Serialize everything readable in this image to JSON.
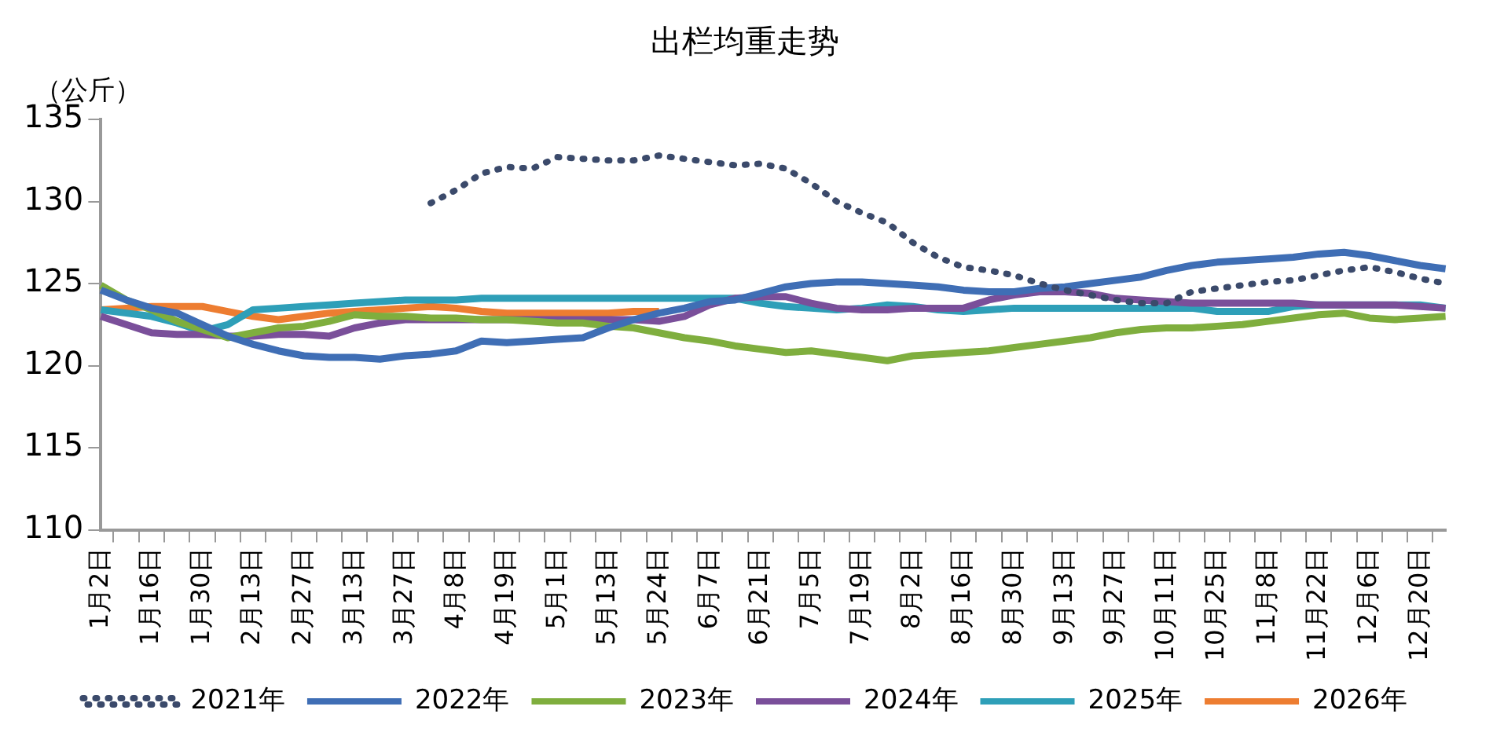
{
  "chart_data": {
    "type": "line",
    "title": "出栏均重走势",
    "ylabel": "（公斤）",
    "categories": [
      "1月2日",
      null,
      "1月16日",
      null,
      "1月30日",
      null,
      "2月13日",
      null,
      "2月27日",
      null,
      "3月13日",
      null,
      "3月27日",
      null,
      "4月8日",
      null,
      "4月19日",
      null,
      "5月1日",
      null,
      "5月13日",
      null,
      "5月24日",
      null,
      "6月7日",
      null,
      "6月21日",
      null,
      "7月5日",
      null,
      "7月19日",
      null,
      "8月2日",
      null,
      "8月16日",
      null,
      "8月30日",
      null,
      "9月13日",
      null,
      "9月27日",
      null,
      "10月11日",
      null,
      "10月25日",
      null,
      "11月8日",
      null,
      "11月22日",
      null,
      "12月6日",
      null,
      "12月20日",
      null
    ],
    "ylim": [
      110,
      135
    ],
    "yticks": [
      110,
      115,
      120,
      125,
      130,
      135
    ],
    "grid": false,
    "legend": "bottom",
    "marker": "none",
    "series": [
      {
        "name": "2021年",
        "color": "#3b4a6b",
        "line_style": "dotted",
        "values": [
          null,
          null,
          null,
          null,
          null,
          null,
          null,
          null,
          null,
          null,
          null,
          null,
          null,
          129.9,
          130.7,
          131.7,
          132.1,
          132.0,
          132.7,
          132.6,
          132.5,
          132.5,
          132.8,
          132.6,
          132.4,
          132.2,
          132.3,
          132.0,
          131.1,
          130.0,
          129.3,
          128.7,
          127.5,
          126.6,
          126.0,
          125.8,
          125.5,
          125.0,
          124.6,
          124.3,
          124.0,
          123.8,
          123.8,
          124.5,
          124.7,
          124.9,
          125.1,
          125.2,
          125.5,
          125.8,
          126.0,
          125.7,
          125.3,
          125.0
        ]
      },
      {
        "name": "2022年",
        "color": "#3f6eb5",
        "line_style": "solid",
        "values": [
          124.6,
          124.0,
          123.5,
          123.2,
          122.5,
          121.8,
          121.3,
          120.9,
          120.6,
          120.5,
          120.5,
          120.4,
          120.6,
          120.7,
          120.9,
          121.5,
          121.4,
          121.5,
          121.6,
          121.7,
          122.3,
          122.8,
          123.2,
          123.5,
          123.9,
          124.0,
          124.4,
          124.8,
          125.0,
          125.1,
          125.1,
          125.0,
          124.9,
          124.8,
          124.6,
          124.5,
          124.5,
          124.7,
          124.8,
          125.0,
          125.2,
          125.4,
          125.8,
          126.1,
          126.3,
          126.4,
          126.5,
          126.6,
          126.8,
          126.9,
          126.7,
          126.4,
          126.1,
          125.9
        ]
      },
      {
        "name": "2023年",
        "color": "#7fae3e",
        "line_style": "solid",
        "values": [
          124.9,
          124.0,
          123.4,
          122.7,
          122.2,
          121.7,
          122.0,
          122.3,
          122.4,
          122.7,
          123.1,
          123.0,
          123.0,
          122.9,
          122.9,
          122.8,
          122.8,
          122.7,
          122.6,
          122.6,
          122.4,
          122.3,
          122.0,
          121.7,
          121.5,
          121.2,
          121.0,
          120.8,
          120.9,
          120.7,
          120.5,
          120.3,
          120.6,
          120.7,
          120.8,
          120.9,
          121.1,
          121.3,
          121.5,
          121.7,
          122.0,
          122.2,
          122.3,
          122.3,
          122.4,
          122.5,
          122.7,
          122.9,
          123.1,
          123.2,
          122.9,
          122.8,
          122.9,
          123.0
        ]
      },
      {
        "name": "2024年",
        "color": "#7a4f9a",
        "line_style": "solid",
        "values": [
          123.0,
          122.5,
          122.0,
          121.9,
          121.9,
          121.8,
          121.8,
          121.9,
          121.9,
          121.8,
          122.3,
          122.6,
          122.8,
          122.8,
          122.8,
          122.8,
          122.8,
          122.8,
          122.8,
          122.8,
          122.8,
          122.8,
          122.7,
          123.0,
          123.7,
          124.1,
          124.2,
          124.2,
          123.8,
          123.5,
          123.4,
          123.4,
          123.5,
          123.5,
          123.5,
          124.0,
          124.3,
          124.5,
          124.5,
          124.4,
          124.1,
          124.0,
          123.9,
          123.8,
          123.8,
          123.8,
          123.8,
          123.8,
          123.7,
          123.7,
          123.7,
          123.7,
          123.6,
          123.5
        ]
      },
      {
        "name": "2025年",
        "color": "#2e9fb8",
        "line_style": "solid",
        "values": [
          123.4,
          123.2,
          123.0,
          122.6,
          122.1,
          122.5,
          123.4,
          123.5,
          123.6,
          123.7,
          123.8,
          123.9,
          124.0,
          124.0,
          124.0,
          124.1,
          124.1,
          124.1,
          124.1,
          124.1,
          124.1,
          124.1,
          124.1,
          124.1,
          124.1,
          124.1,
          123.8,
          123.6,
          123.5,
          123.4,
          123.5,
          123.7,
          123.6,
          123.4,
          123.3,
          123.4,
          123.5,
          123.5,
          123.5,
          123.5,
          123.5,
          123.5,
          123.5,
          123.5,
          123.3,
          123.3,
          123.3,
          123.6,
          123.7,
          123.7,
          123.7,
          123.7,
          123.7,
          123.5
        ]
      },
      {
        "name": "2026年",
        "color": "#ed7d31",
        "line_style": "solid",
        "values": [
          123.4,
          123.5,
          123.6,
          123.6,
          123.6,
          123.3,
          123.0,
          122.8,
          123.0,
          123.2,
          123.3,
          123.4,
          123.5,
          123.6,
          123.5,
          123.3,
          123.2,
          123.2,
          123.2,
          123.2,
          123.2,
          123.3,
          123.3,
          null,
          null,
          null,
          null,
          null,
          null,
          null,
          null,
          null,
          null,
          null,
          null,
          null,
          null,
          null,
          null,
          null,
          null,
          null,
          null,
          null,
          null,
          null,
          null,
          null,
          null,
          null,
          null,
          null,
          null,
          null
        ]
      }
    ]
  }
}
